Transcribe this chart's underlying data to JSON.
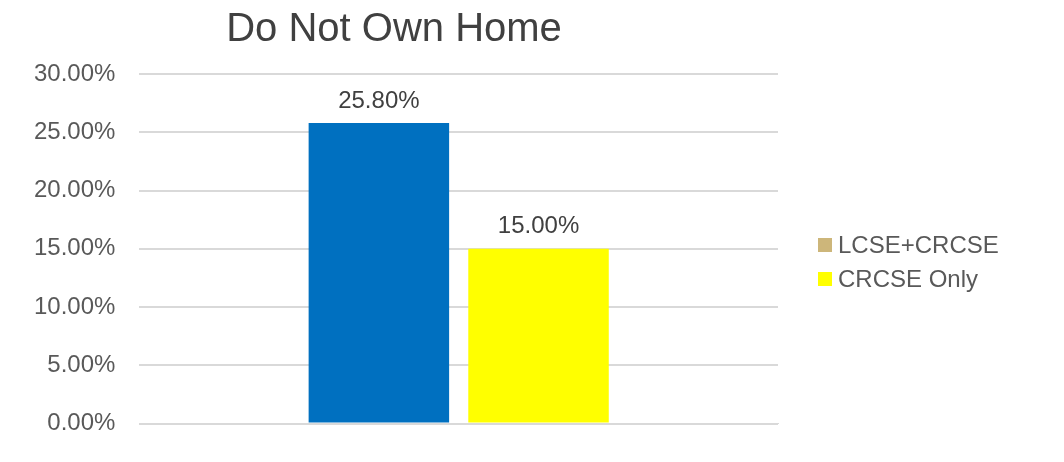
{
  "chart_data": {
    "type": "bar",
    "title": "Do Not Own Home",
    "categories": [
      null
    ],
    "series": [
      {
        "name": "LCSE+CRCSE",
        "color": "#cdb67a",
        "colors": [
          "#0070c0"
        ],
        "values": [
          25.8
        ],
        "value_labels": [
          "25.80%"
        ]
      },
      {
        "name": "CRCSE Only",
        "color": "#ffff00",
        "values": [
          15.0
        ],
        "value_labels": [
          "15.00%"
        ]
      }
    ],
    "ylim": [
      0,
      30
    ],
    "yticks": [
      {
        "value": 0,
        "label": "0.00%"
      },
      {
        "value": 5,
        "label": "5.00%"
      },
      {
        "value": 10,
        "label": "10.00%"
      },
      {
        "value": 15,
        "label": "15.00%"
      },
      {
        "value": 20,
        "label": "20.00%"
      },
      {
        "value": 25,
        "label": "25.00%"
      },
      {
        "value": 30,
        "label": "30.00%"
      }
    ],
    "grid": "y",
    "legend": "right"
  }
}
